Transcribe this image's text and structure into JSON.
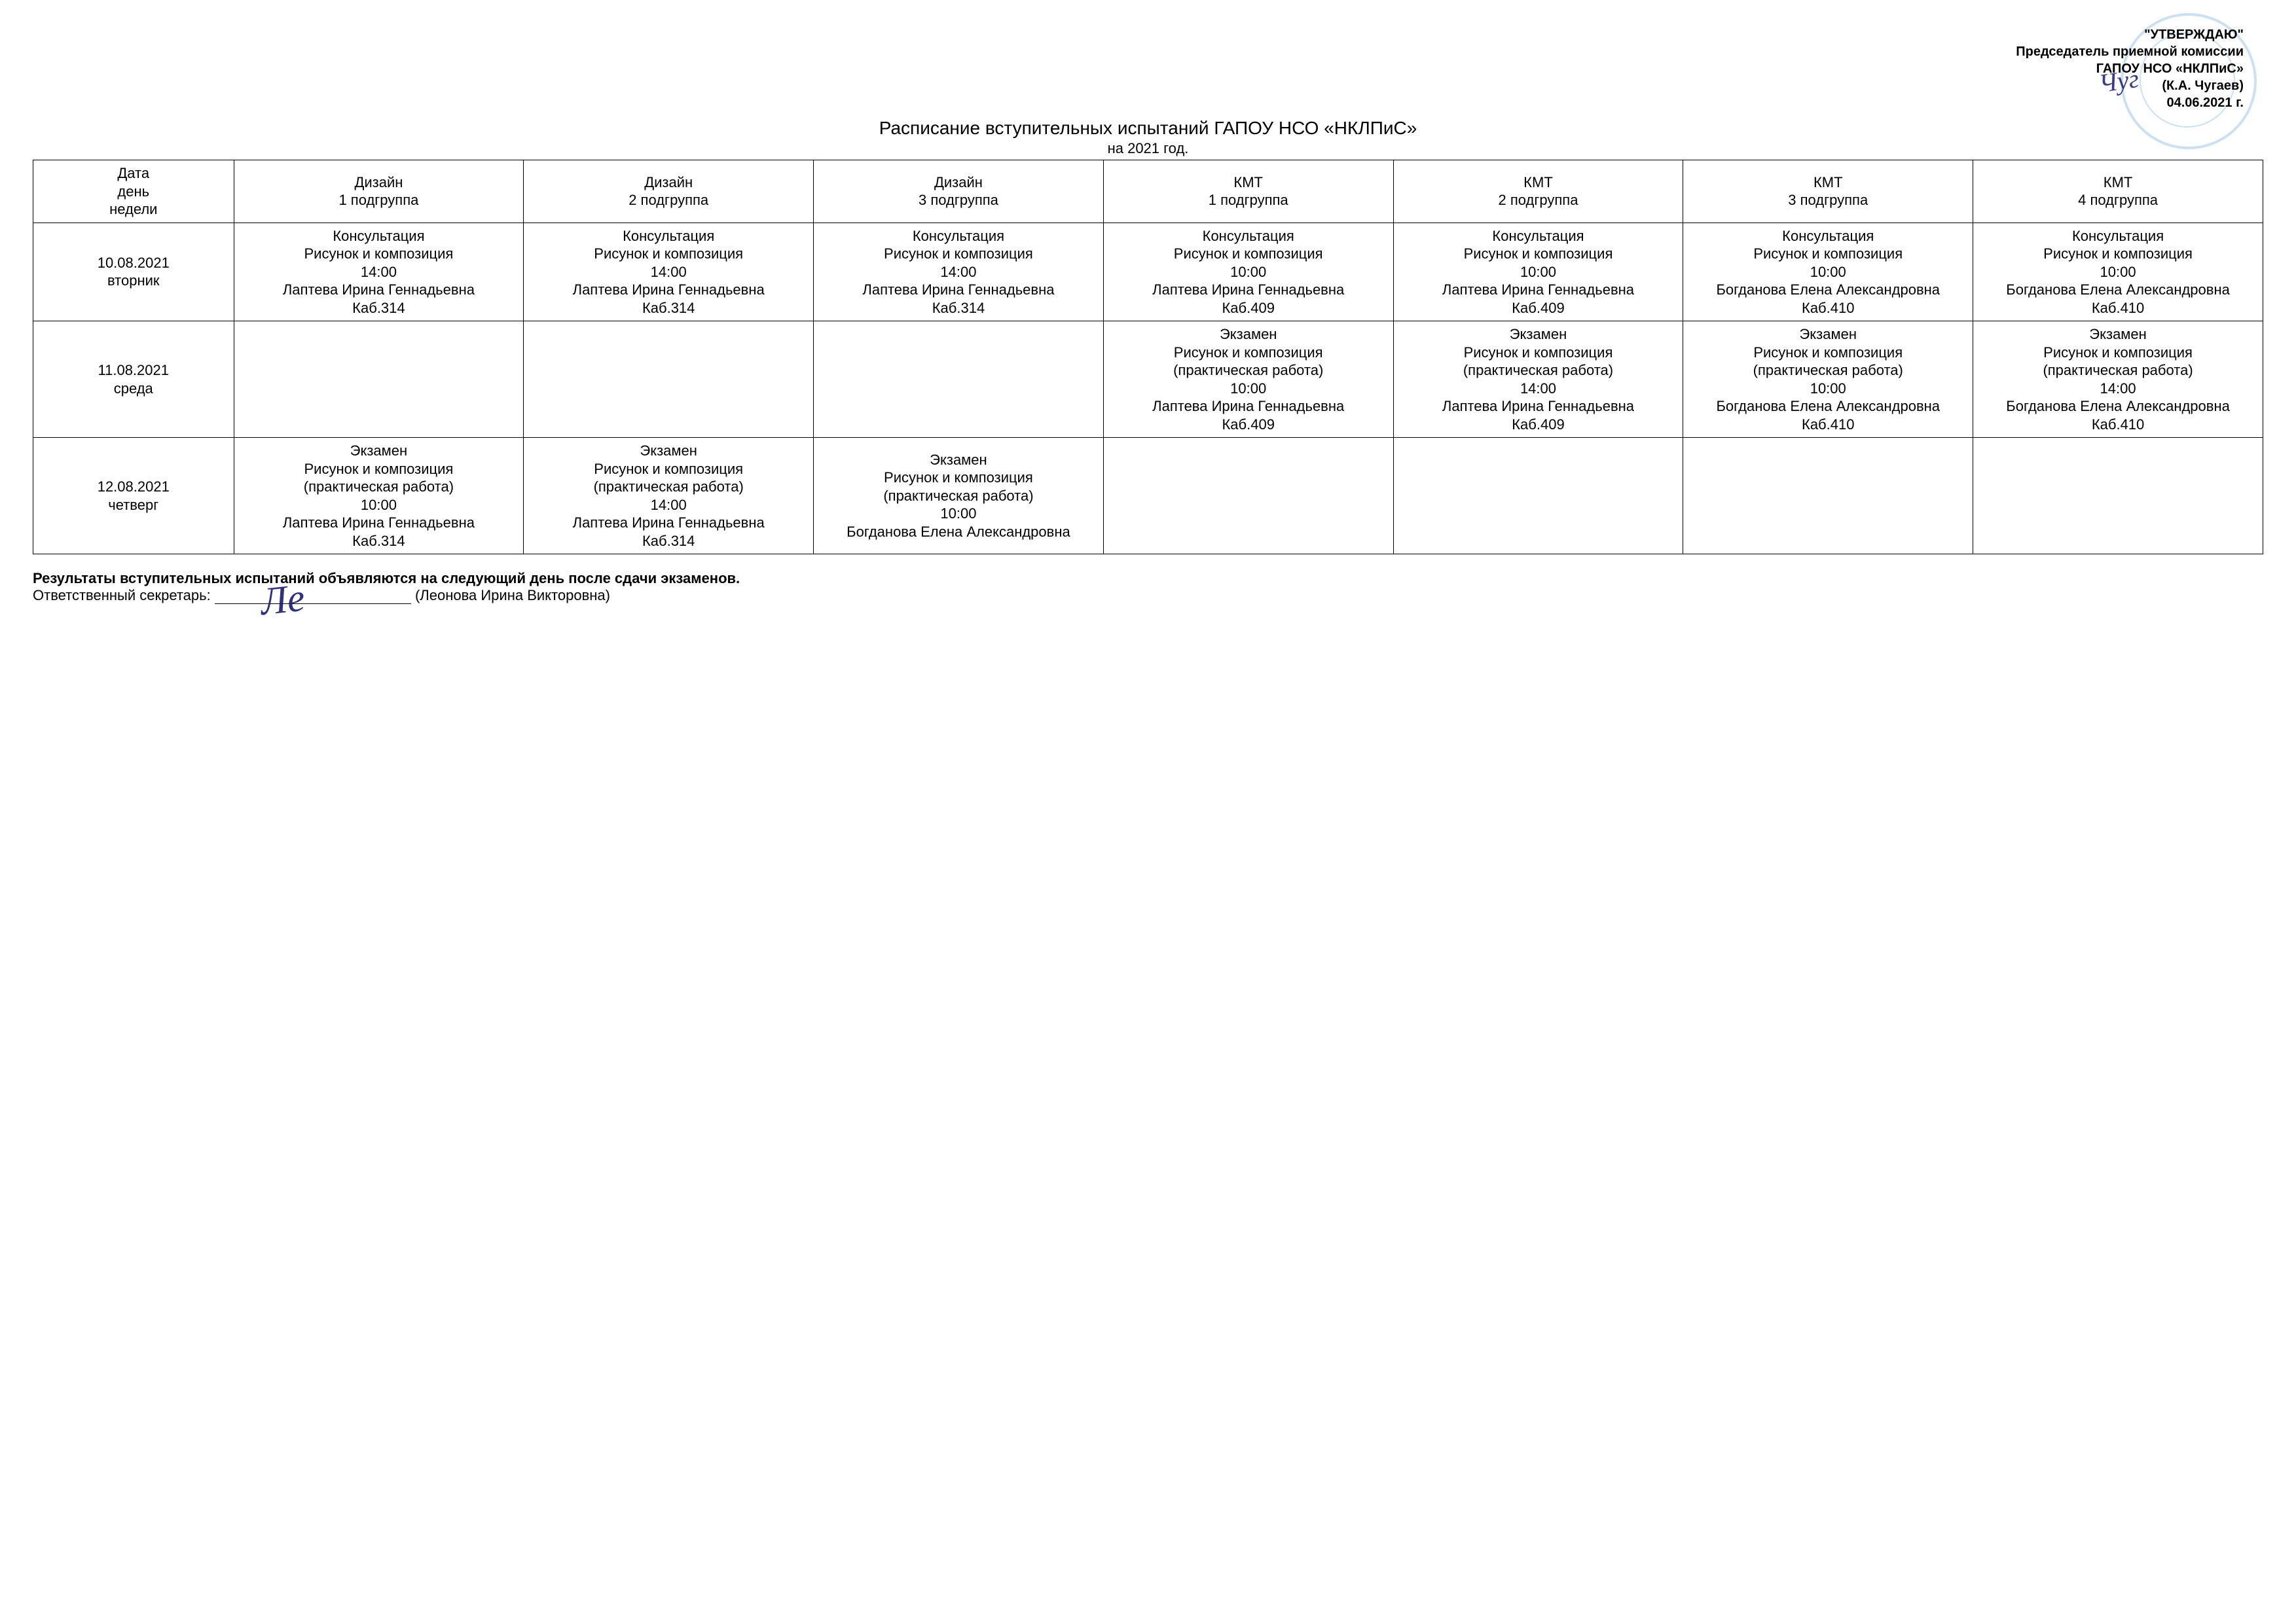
{
  "approval": {
    "line1": "\"УТВЕРЖДАЮ\"",
    "line2": "Председатель приемной комиссии",
    "line3": "ГАПОУ НСО «НКЛПиС»",
    "line4": "(К.А. Чугаев)",
    "line5": "04.06.2021 г."
  },
  "title": "Расписание вступительных испытаний ГАПОУ НСО «НКЛПиС»",
  "subtitle": "на 2021 год.",
  "headers": {
    "date": "Дата\nдень\nнедели",
    "cols": [
      "Дизайн\n1 подгруппа",
      "Дизайн\n2 подгруппа",
      "Дизайн\n3 подгруппа",
      "КМТ\n1 подгруппа",
      "КМТ\n2 подгруппа",
      "КМТ\n3 подгруппа",
      "КМТ\n4 подгруппа"
    ]
  },
  "rows": [
    {
      "date": "10.08.2021\nвторник",
      "cells": [
        "Консультация\nРисунок и композиция\n14:00\nЛаптева Ирина Геннадьевна\nКаб.314",
        "Консультация\nРисунок и композиция\n14:00\nЛаптева Ирина Геннадьевна\nКаб.314",
        "Консультация\nРисунок и композиция\n14:00\nЛаптева Ирина Геннадьевна\nКаб.314",
        "Консультация\nРисунок и композиция\n10:00\nЛаптева Ирина Геннадьевна\nКаб.409",
        "Консультация\nРисунок и композиция\n10:00\nЛаптева Ирина Геннадьевна\nКаб.409",
        "Консультация\nРисунок и композиция\n10:00\nБогданова Елена Александровна\nКаб.410",
        "Консультация\nРисунок и композиция\n10:00\nБогданова Елена Александровна\nКаб.410"
      ]
    },
    {
      "date": "11.08.2021\nсреда",
      "cells": [
        "",
        "",
        "",
        "Экзамен\nРисунок и композиция\n(практическая работа)\n10:00\nЛаптева Ирина Геннадьевна\nКаб.409",
        "Экзамен\nРисунок и композиция\n(практическая работа)\n14:00\nЛаптева Ирина Геннадьевна\nКаб.409",
        "Экзамен\nРисунок и композиция\n(практическая работа)\n10:00\nБогданова Елена Александровна\nКаб.410",
        "Экзамен\nРисунок и композиция\n(практическая работа)\n14:00\nБогданова Елена Александровна\nКаб.410"
      ]
    },
    {
      "date": "12.08.2021\nчетверг",
      "cells": [
        "Экзамен\nРисунок и композиция\n(практическая работа)\n10:00\nЛаптева Ирина Геннадьевна\nКаб.314",
        "Экзамен\nРисунок и композиция\n(практическая работа)\n14:00\nЛаптева Ирина Геннадьевна\nКаб.314",
        "Экзамен\nРисунок и композиция\n(практическая работа)\n10:00\nБогданова Елена Александровна",
        "",
        "",
        "",
        ""
      ]
    }
  ],
  "footer": {
    "note": "Результаты вступительных испытаний объявляются на следующий день после сдачи экзаменов.",
    "secretary_label": "Ответственный секретарь:",
    "secretary_name": "(Леонова Ирина Викторовна)"
  },
  "style": {
    "stamp_color": "#6fa8d6",
    "ink_color": "#1a1a6e",
    "border_color": "#000000",
    "background": "#ffffff",
    "title_fontsize": 28,
    "cell_fontsize": 22
  }
}
